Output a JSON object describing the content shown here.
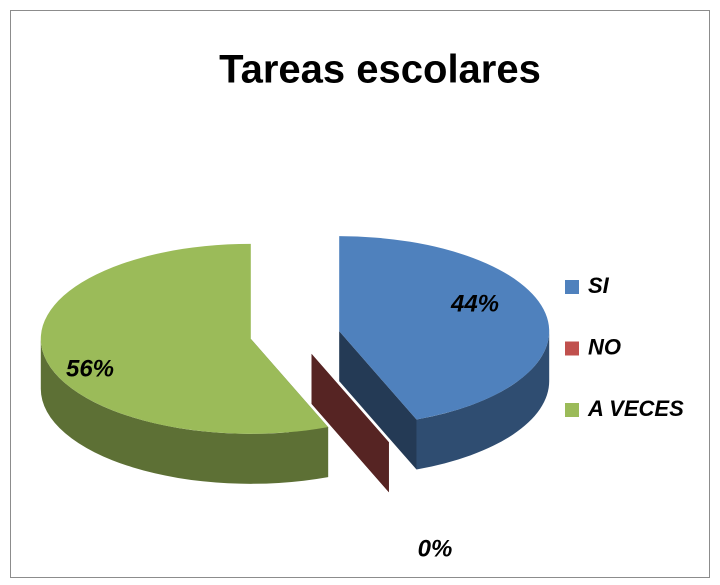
{
  "chart_data": {
    "type": "pie3d",
    "title": "Tareas escolares",
    "categories": [
      "SI",
      "NO",
      "A VECES"
    ],
    "values": [
      44,
      0,
      56
    ],
    "value_labels": [
      "44%",
      "0%",
      "56%"
    ],
    "colors": [
      "#4f81bd",
      "#c0504d",
      "#9bbb59"
    ],
    "legend": "right"
  }
}
